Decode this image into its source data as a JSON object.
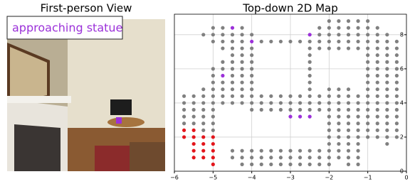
{
  "view_panel": {
    "title": "First-person View",
    "caption": "approaching statue"
  },
  "chart_data": {
    "type": "scatter",
    "title": "Top-down 2D Map",
    "xlim": [
      -6,
      0
    ],
    "ylim": [
      0,
      9.2
    ],
    "xticks": [
      {
        "value": -6,
        "label": "−6"
      },
      {
        "value": -5,
        "label": "−5"
      },
      {
        "value": -4,
        "label": "−4"
      },
      {
        "value": -3,
        "label": "−3"
      },
      {
        "value": -2,
        "label": "−2"
      },
      {
        "value": -1,
        "label": "−1"
      },
      0
    ],
    "yticks": [
      0,
      2,
      4,
      6,
      8
    ],
    "grid": true,
    "series": [
      {
        "color": "#808080",
        "x": [
          -5.75,
          -5.75,
          -5.75,
          -5.75,
          -5.75,
          -5.5,
          -5.5,
          -5.5,
          -5.5,
          -5.5,
          -5.25,
          -5.25,
          -5.25,
          -5.25,
          -5.25,
          -5.25,
          -5.25,
          -5.25,
          -5.0,
          -5.0,
          -5.0,
          -5.0,
          -5.0,
          -5.0,
          -5.0,
          -5.0,
          -5.0,
          -5.0,
          -5.0,
          -5.0,
          -5.0,
          -4.75,
          -4.75,
          -4.75,
          -4.75,
          -4.75,
          -4.75,
          -4.75,
          -4.75,
          -4.75,
          -4.75,
          -4.5,
          -4.5,
          -4.5,
          -4.5,
          -4.5,
          -4.5,
          -4.5,
          -4.5,
          -4.5,
          -4.5,
          -4.5,
          -4.5,
          -4.5,
          -4.25,
          -4.25,
          -4.25,
          -4.25,
          -4.25,
          -4.25,
          -4.25,
          -4.25,
          -4.25,
          -4.25,
          -4.25,
          -4.25,
          -4.25,
          -4.25,
          -4.25,
          -4.0,
          -4.0,
          -4.0,
          -4.0,
          -4.0,
          -4.0,
          -4.0,
          -4.0,
          -4.0,
          -4.0,
          -4.0,
          -4.0,
          -4.0,
          -4.0,
          -3.75,
          -3.75,
          -3.75,
          -3.75,
          -3.75,
          -3.75,
          -3.75,
          -3.5,
          -3.5,
          -3.5,
          -3.5,
          -3.5,
          -3.5,
          -3.5,
          -3.25,
          -3.25,
          -3.25,
          -3.25,
          -3.25,
          -3.25,
          -3.25,
          -3.0,
          -3.0,
          -3.0,
          -3.0,
          -3.0,
          -3.0,
          -3.0,
          -2.75,
          -2.75,
          -2.75,
          -2.75,
          -2.75,
          -2.75,
          -2.75,
          -2.5,
          -2.5,
          -2.5,
          -2.5,
          -2.5,
          -2.5,
          -2.5,
          -2.5,
          -2.5,
          -2.5,
          -2.5,
          -2.5,
          -2.5,
          -2.5,
          -2.25,
          -2.25,
          -2.25,
          -2.25,
          -2.25,
          -2.25,
          -2.25,
          -2.25,
          -2.25,
          -2.25,
          -2.0,
          -2.0,
          -2.0,
          -2.0,
          -2.0,
          -2.0,
          -2.0,
          -2.0,
          -2.0,
          -2.0,
          -2.0,
          -2.0,
          -2.0,
          -2.0,
          -2.0,
          -2.0,
          -2.0,
          -1.75,
          -1.75,
          -1.75,
          -1.75,
          -1.75,
          -1.75,
          -1.75,
          -1.75,
          -1.75,
          -1.75,
          -1.75,
          -1.75,
          -1.75,
          -1.75,
          -1.75,
          -1.75,
          -1.5,
          -1.5,
          -1.5,
          -1.5,
          -1.5,
          -1.5,
          -1.5,
          -1.5,
          -1.5,
          -1.5,
          -1.5,
          -1.5,
          -1.5,
          -1.5,
          -1.5,
          -1.5,
          -1.5,
          -1.25,
          -1.25,
          -1.25,
          -1.25,
          -1.25,
          -1.25,
          -1.25,
          -1.25,
          -1.25,
          -1.25,
          -1.25,
          -1.25,
          -1.25,
          -1.25,
          -1.25,
          -1.25,
          -1.0,
          -1.0,
          -1.0,
          -1.0,
          -1.0,
          -1.0,
          -1.0,
          -1.0,
          -1.0,
          -1.0,
          -1.0,
          -1.0,
          -1.0,
          -1.0,
          -1.0,
          -1.0,
          -1.0,
          -1.0,
          -0.75,
          -0.75,
          -0.75,
          -0.75,
          -0.75,
          -0.75,
          -0.75,
          -0.75,
          -0.75,
          -0.75,
          -0.75,
          -0.75,
          -0.75,
          -0.75,
          -0.75,
          -0.75,
          -0.75,
          -0.5,
          -0.5,
          -0.5,
          -0.5,
          -0.5,
          -0.5,
          -0.5,
          -0.5,
          -0.5,
          -0.5,
          -0.5,
          -0.5,
          -0.5,
          -0.5,
          -0.5,
          -0.5,
          -0.5,
          -0.25,
          -0.25,
          -0.25,
          -0.25,
          -0.25,
          -0.25,
          -0.25,
          -0.25,
          -0.25,
          -0.25,
          -0.25,
          -0.25,
          -0.25,
          -0.25,
          -0.25
        ],
        "values": [
          2.8,
          3.2,
          3.6,
          4.0,
          4.4,
          2.8,
          3.2,
          3.6,
          4.0,
          4.4,
          2.4,
          2.8,
          3.2,
          3.6,
          4.0,
          4.4,
          4.8,
          8.0,
          2.4,
          2.8,
          3.2,
          3.6,
          4.0,
          4.4,
          4.8,
          5.2,
          5.6,
          6.0,
          7.6,
          8.0,
          8.4,
          4.0,
          4.4,
          4.8,
          5.2,
          6.0,
          6.4,
          7.2,
          7.6,
          8.0,
          8.4,
          0.8,
          1.2,
          4.0,
          4.4,
          4.8,
          5.2,
          5.6,
          6.0,
          6.4,
          6.8,
          7.2,
          7.6,
          8.0,
          0.4,
          0.8,
          1.2,
          4.0,
          4.4,
          4.8,
          5.2,
          5.6,
          6.0,
          6.4,
          6.8,
          7.2,
          7.6,
          8.0,
          8.4,
          0.4,
          0.8,
          1.2,
          3.6,
          4.0,
          4.4,
          4.8,
          5.2,
          5.6,
          6.0,
          6.4,
          6.8,
          7.2,
          8.0,
          0.4,
          0.8,
          1.2,
          3.6,
          4.0,
          4.4,
          7.6,
          0.4,
          0.8,
          1.2,
          3.6,
          4.0,
          4.4,
          7.6,
          0.4,
          0.8,
          1.2,
          3.6,
          4.0,
          4.4,
          7.6,
          0.4,
          0.8,
          1.2,
          3.6,
          4.0,
          4.4,
          7.6,
          0.4,
          0.8,
          1.2,
          3.6,
          4.0,
          4.4,
          7.6,
          0.4,
          0.8,
          1.2,
          3.6,
          4.0,
          4.4,
          4.8,
          5.2,
          5.6,
          6.0,
          6.4,
          6.8,
          7.2,
          7.6,
          0.4,
          0.8,
          1.2,
          3.6,
          4.0,
          4.4,
          7.2,
          7.6,
          8.0,
          8.4,
          0.4,
          0.8,
          1.2,
          1.6,
          2.0,
          2.4,
          2.8,
          3.2,
          3.6,
          4.0,
          4.4,
          4.8,
          7.2,
          7.6,
          8.0,
          8.4,
          8.8,
          0.8,
          1.2,
          1.6,
          2.0,
          2.4,
          2.8,
          3.2,
          3.6,
          4.0,
          4.4,
          4.8,
          7.2,
          7.6,
          8.0,
          8.4,
          8.8,
          0.4,
          0.8,
          1.2,
          1.6,
          2.0,
          2.4,
          2.8,
          3.2,
          3.6,
          4.0,
          4.4,
          4.8,
          7.2,
          7.6,
          8.0,
          8.4,
          8.8,
          0.4,
          0.8,
          1.2,
          1.6,
          2.0,
          2.4,
          2.8,
          3.2,
          3.6,
          4.0,
          4.4,
          7.2,
          7.6,
          8.0,
          8.4,
          8.8,
          2.0,
          2.4,
          2.8,
          3.2,
          3.6,
          4.0,
          4.4,
          4.8,
          5.2,
          5.6,
          6.0,
          6.4,
          6.8,
          7.2,
          7.6,
          8.0,
          8.4,
          8.8,
          2.0,
          2.4,
          2.8,
          3.2,
          3.6,
          4.0,
          4.4,
          4.8,
          5.2,
          5.6,
          6.0,
          6.4,
          6.8,
          7.2,
          7.6,
          8.0,
          8.4,
          1.6,
          2.0,
          2.4,
          2.8,
          3.2,
          3.6,
          4.0,
          4.4,
          4.8,
          5.2,
          5.6,
          6.0,
          6.4,
          6.8,
          7.2,
          7.6,
          8.0,
          2.0,
          2.4,
          2.8,
          3.2,
          3.6,
          4.0,
          4.4,
          4.8,
          5.2,
          5.6,
          6.0,
          6.4,
          6.8,
          7.2,
          7.6
        ]
      },
      {
        "color": "#e3161c",
        "x": [
          -5.75,
          -5.75,
          -5.5,
          -5.5,
          -5.5,
          -5.5,
          -5.5,
          -5.25,
          -5.25,
          -5.25,
          -5.25,
          -5.0,
          -5.0,
          -5.0,
          -5.0,
          -5.0
        ],
        "values": [
          2.0,
          2.4,
          0.8,
          1.2,
          1.6,
          2.0,
          2.4,
          0.8,
          1.2,
          1.6,
          2.0,
          0.4,
          0.8,
          1.2,
          1.6,
          2.0
        ]
      },
      {
        "color": "#9b30d9",
        "x": [
          -4.5,
          -4.0,
          -3.0,
          -2.75,
          -2.5,
          -2.5,
          -4.75
        ],
        "values": [
          8.4,
          7.6,
          3.2,
          3.2,
          3.2,
          8.0,
          5.6
        ]
      }
    ]
  }
}
